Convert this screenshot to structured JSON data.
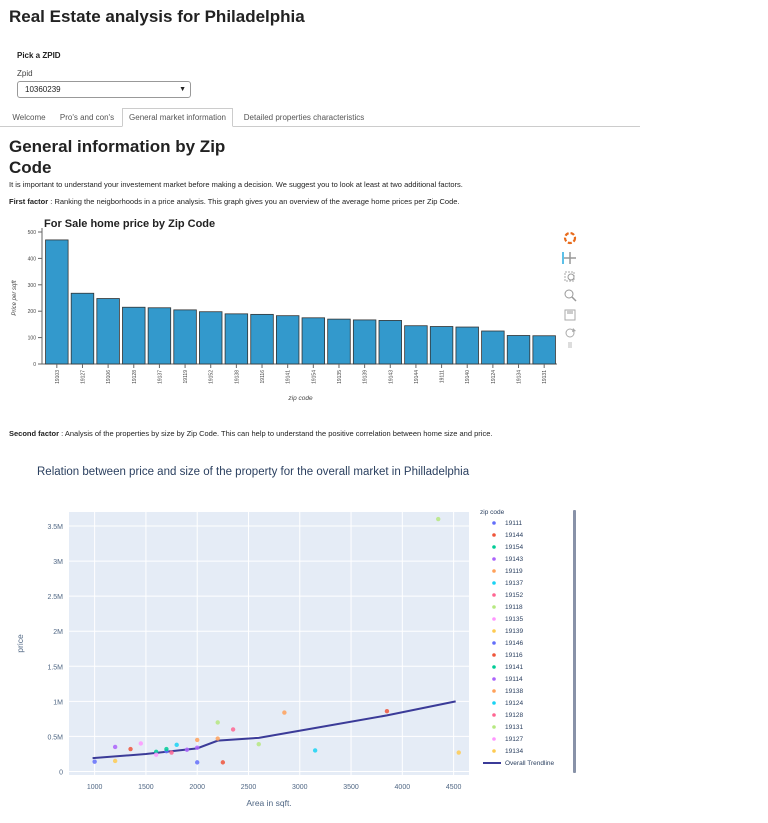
{
  "page": {
    "title": "Real Estate analysis for Philadelphia",
    "pick_label": "Pick a ZPID",
    "zpid_label": "Zpid",
    "zpid_value": "10360239",
    "tabs": [
      "Welcome",
      "Pro's and con's",
      "General market information",
      "Detailed properties characteristics"
    ],
    "active_tab": 2,
    "section_title": "General information by Zip Code",
    "intro": "It is important to understand your investement market before making a decision. We suggest you to look at least at two additional factors.",
    "first_factor_label": "First factor",
    "first_factor_text": " : Ranking the neigborhoods in a price analysis. This graph gives you an overview of the average home prices per Zip Code.",
    "second_factor_label": "Second factor",
    "second_factor_text": " : Analysis of the properties by size by Zip Code. This can help to understand the positive correlation between home size and price."
  },
  "chart_data": [
    {
      "type": "bar",
      "title": "For Sale home price by Zip Code",
      "xlabel": "zip code",
      "ylabel": "Price per sqft",
      "ylim": [
        0,
        500
      ],
      "yticks": [
        0,
        100,
        200,
        300,
        400,
        500
      ],
      "categories": [
        "19103",
        "19127",
        "19106",
        "19128",
        "19137",
        "19119",
        "19152",
        "19138",
        "19116",
        "19141",
        "19154",
        "19135",
        "19139",
        "19143",
        "19144",
        "19111",
        "19140",
        "19124",
        "19134",
        "19131"
      ],
      "values": [
        470,
        268,
        248,
        215,
        213,
        205,
        198,
        190,
        188,
        183,
        175,
        170,
        167,
        165,
        145,
        142,
        140,
        125,
        108,
        107
      ],
      "color": "#3399cc"
    },
    {
      "type": "scatter",
      "title": "Relation between price and size of the property for the overall market in Philladelphia",
      "xlabel": "Area in sqft.",
      "ylabel": "price",
      "xlim": [
        750,
        4650
      ],
      "ylim": [
        -50000,
        3700000
      ],
      "xticks": [
        1000,
        1500,
        2000,
        2500,
        3000,
        3500,
        4000,
        4500
      ],
      "yticks": [
        0,
        500000,
        1000000,
        1500000,
        2000000,
        2500000,
        3000000,
        3500000
      ],
      "ytick_labels": [
        "0",
        "0.5M",
        "1M",
        "1.5M",
        "2M",
        "2.5M",
        "3M",
        "3.5M"
      ],
      "legend_title": "zip code",
      "legend_placement": "right",
      "series": [
        {
          "name": "19111",
          "color": "#636efa",
          "points": [
            [
              1000,
              140000
            ],
            [
              1700,
              290000
            ]
          ]
        },
        {
          "name": "19144",
          "color": "#ef553b",
          "points": [
            [
              1350,
              320000
            ],
            [
              3850,
              860000
            ]
          ]
        },
        {
          "name": "19154",
          "color": "#00cc96",
          "points": [
            [
              1600,
              280000
            ]
          ]
        },
        {
          "name": "19143",
          "color": "#ab63fa",
          "points": [
            [
              1200,
              350000
            ],
            [
              1900,
              310000
            ]
          ]
        },
        {
          "name": "19119",
          "color": "#ffa15a",
          "points": [
            [
              2850,
              840000
            ],
            [
              2200,
              470000
            ]
          ]
        },
        {
          "name": "19137",
          "color": "#19d3f3",
          "points": [
            [
              1800,
              380000
            ]
          ]
        },
        {
          "name": "19152",
          "color": "#ff6692",
          "points": [
            [
              1750,
              270000
            ]
          ]
        },
        {
          "name": "19118",
          "color": "#b6e880",
          "points": [
            [
              4350,
              3600000
            ],
            [
              2200,
              700000
            ]
          ]
        },
        {
          "name": "19135",
          "color": "#ff97ff",
          "points": [
            [
              1600,
              240000
            ]
          ]
        },
        {
          "name": "19139",
          "color": "#fecb52",
          "points": [
            [
              1200,
              150000
            ]
          ]
        },
        {
          "name": "19146",
          "color": "#636efa",
          "points": [
            [
              2000,
              130000
            ]
          ]
        },
        {
          "name": "19116",
          "color": "#ef553b",
          "points": [
            [
              2250,
              130000
            ]
          ]
        },
        {
          "name": "19141",
          "color": "#00cc96",
          "points": [
            [
              1700,
              320000
            ]
          ]
        },
        {
          "name": "19114",
          "color": "#ab63fa",
          "points": [
            [
              2000,
              340000
            ]
          ]
        },
        {
          "name": "19138",
          "color": "#ffa15a",
          "points": [
            [
              2000,
              450000
            ]
          ]
        },
        {
          "name": "19124",
          "color": "#19d3f3",
          "points": [
            [
              3150,
              300000
            ]
          ]
        },
        {
          "name": "19128",
          "color": "#ff6692",
          "points": [
            [
              2350,
              600000
            ]
          ]
        },
        {
          "name": "19131",
          "color": "#b6e880",
          "points": [
            [
              2600,
              390000
            ]
          ]
        },
        {
          "name": "19127",
          "color": "#ff97ff",
          "points": [
            [
              1450,
              400000
            ]
          ]
        },
        {
          "name": "19134",
          "color": "#fecb52",
          "points": [
            [
              4550,
              270000
            ]
          ]
        }
      ],
      "trendline": {
        "name": "Overall Trendline",
        "color": "#3b3b98",
        "points": [
          [
            980,
            190000
          ],
          [
            1500,
            250000
          ],
          [
            2000,
            330000
          ],
          [
            2200,
            440000
          ],
          [
            2600,
            480000
          ],
          [
            3150,
            620000
          ],
          [
            3850,
            800000
          ],
          [
            4520,
            1000000
          ]
        ]
      }
    }
  ]
}
